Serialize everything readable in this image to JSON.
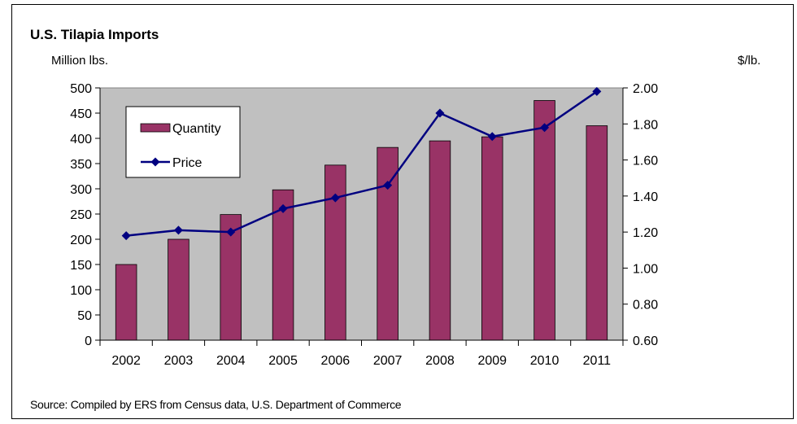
{
  "chart_data": {
    "type": "bar",
    "title": "U.S. Tilapia Imports",
    "ylabel_left": "Million lbs.",
    "ylabel_right": "$/lb.",
    "source": "Source: Compiled by ERS from Census data, U.S. Department of Commerce",
    "categories": [
      "2002",
      "2003",
      "2004",
      "2005",
      "2006",
      "2007",
      "2008",
      "2009",
      "2010",
      "2011"
    ],
    "series": [
      {
        "name": "Quantity",
        "type": "bar",
        "axis": "left",
        "values": [
          150,
          200,
          249,
          298,
          347,
          382,
          395,
          403,
          475,
          425
        ]
      },
      {
        "name": "Price",
        "type": "line",
        "axis": "right",
        "values": [
          1.18,
          1.21,
          1.2,
          1.33,
          1.39,
          1.46,
          1.86,
          1.73,
          1.78,
          1.98
        ]
      }
    ],
    "ylim_left": [
      0,
      500
    ],
    "yticks_left": [
      "0",
      "50",
      "100",
      "150",
      "200",
      "250",
      "300",
      "350",
      "400",
      "450",
      "500"
    ],
    "ylim_right": [
      0.6,
      2.0
    ],
    "yticks_right": [
      "0.60",
      "0.80",
      "1.00",
      "1.20",
      "1.40",
      "1.60",
      "1.80",
      "2.00"
    ],
    "grid": false,
    "legend_position": "top-left",
    "colors": {
      "plot_bg": "#c0c0c0",
      "bar": "#993366",
      "line": "#000080"
    }
  }
}
